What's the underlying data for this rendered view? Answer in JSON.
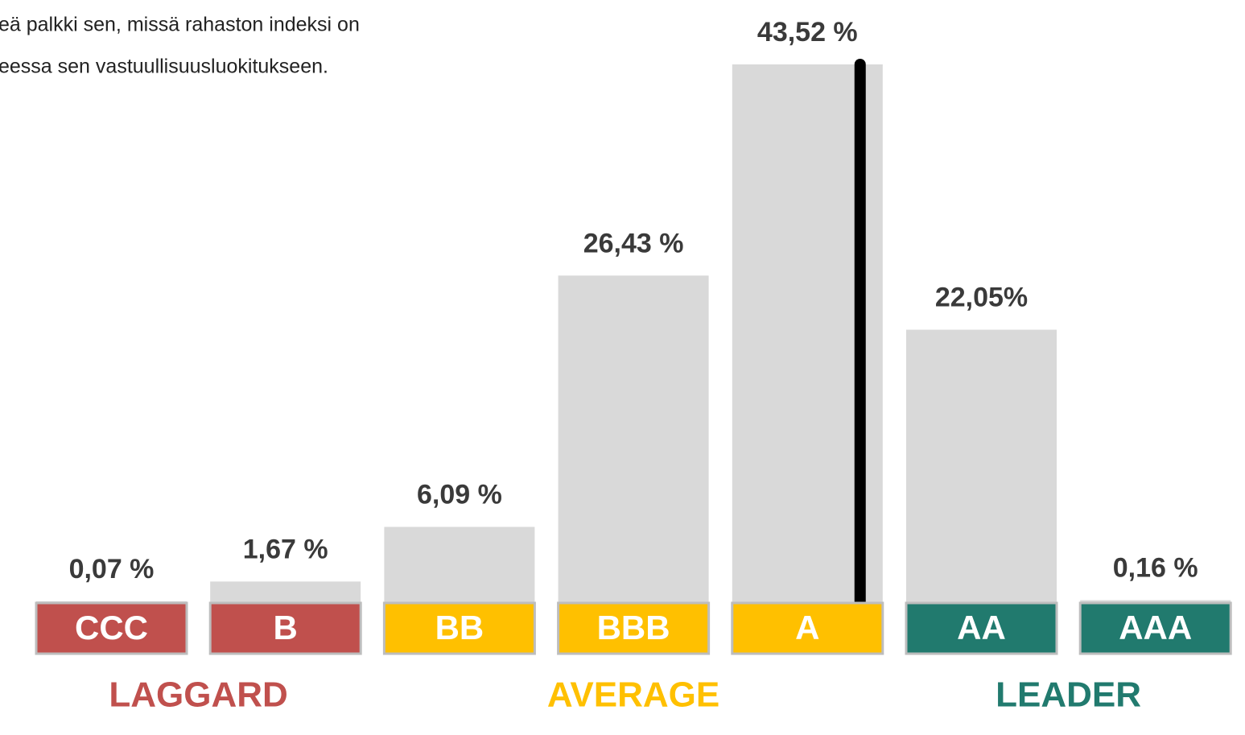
{
  "chart_data": {
    "type": "bar",
    "note": [
      "eä palkki sen, missä rahaston indeksi on",
      "eessa sen vastuullisuusluokitukseen."
    ],
    "categories": [
      "CCC",
      "B",
      "BB",
      "BBB",
      "A",
      "AA",
      "AAA"
    ],
    "values": [
      0.07,
      1.67,
      6.09,
      26.43,
      43.52,
      22.05,
      0.16
    ],
    "value_labels": [
      "0,07 %",
      "1,67 %",
      "6,09 %",
      "26,43 %",
      "43,52 %",
      "22,05%",
      "0,16 %"
    ],
    "color": "#d9d9d9",
    "highlight": "A",
    "groups": [
      {
        "name": "LAGGARD",
        "color": "#c0504d",
        "members": [
          "CCC",
          "B"
        ]
      },
      {
        "name": "AVERAGE",
        "color": "#ffc000",
        "members": [
          "BB",
          "BBB",
          "A"
        ]
      },
      {
        "name": "LEADER",
        "color": "#217a6e",
        "members": [
          "AA",
          "AAA"
        ]
      }
    ]
  }
}
